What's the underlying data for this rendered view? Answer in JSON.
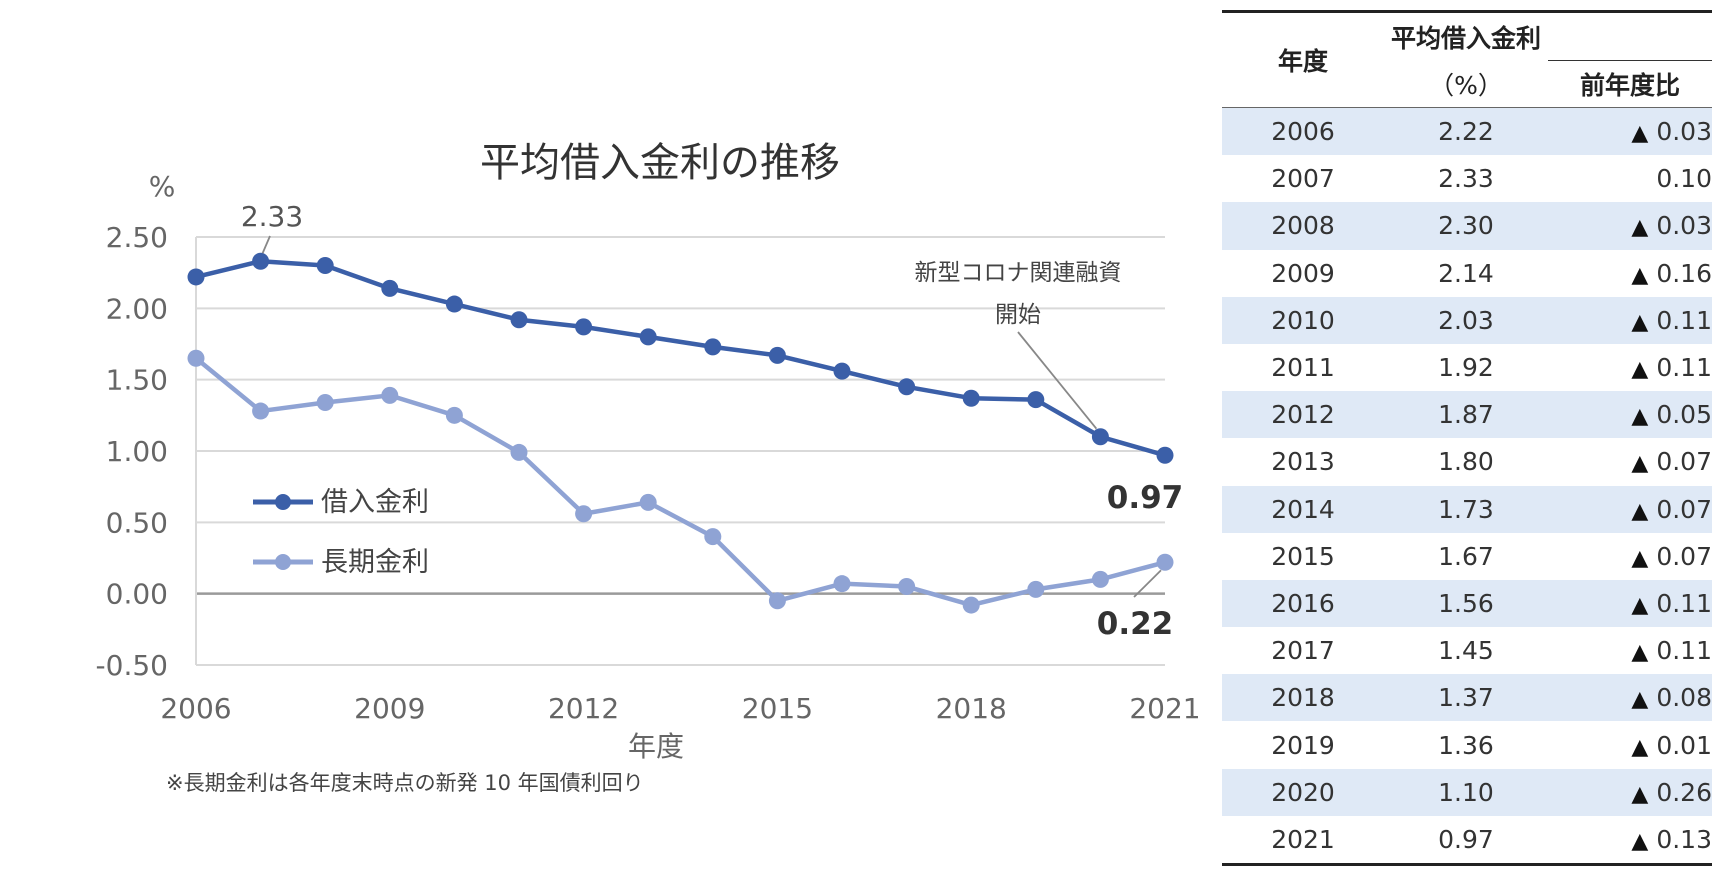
{
  "chart_data": {
    "type": "line",
    "title": "平均借入金利の推移",
    "ylabel": "%",
    "xlabel": "年度",
    "x": [
      2006,
      2007,
      2008,
      2009,
      2010,
      2011,
      2012,
      2013,
      2014,
      2015,
      2016,
      2017,
      2018,
      2019,
      2020,
      2021
    ],
    "xticks": [
      "2006",
      "2009",
      "2012",
      "2015",
      "2018",
      "2021"
    ],
    "yticks": [
      "2.50",
      "2.00",
      "1.50",
      "1.00",
      "0.50",
      "0.00",
      "-0.50"
    ],
    "ylim": [
      -0.5,
      2.5
    ],
    "grid": true,
    "legend_placement": "left-middle",
    "series": [
      {
        "name": "借入金利",
        "color": "#3b5fa8",
        "values": [
          2.22,
          2.33,
          2.3,
          2.14,
          2.03,
          1.92,
          1.87,
          1.8,
          1.73,
          1.67,
          1.56,
          1.45,
          1.37,
          1.36,
          1.1,
          0.97
        ]
      },
      {
        "name": "長期金利",
        "color": "#8fa3d4",
        "values": [
          1.65,
          1.28,
          1.34,
          1.39,
          1.25,
          0.99,
          0.56,
          0.64,
          0.4,
          -0.05,
          0.07,
          0.05,
          -0.08,
          0.03,
          0.1,
          0.22
        ]
      }
    ],
    "annotations": {
      "peak_label": "2.33",
      "end_label_primary": "0.97",
      "end_label_secondary": "0.22",
      "covid_line1": "新型コロナ関連融資",
      "covid_line2": "開始"
    },
    "footnote": "※長期金利は各年度末時点の新発 10 年国債利回り"
  },
  "table": {
    "header_year": "年度",
    "header_avg": "平均借入金利",
    "header_unit": "（%）",
    "header_yoy": "前年度比",
    "triangle": "▲",
    "rows": [
      {
        "year": "2006",
        "rate": "2.22",
        "yoy": "0.03",
        "neg": true
      },
      {
        "year": "2007",
        "rate": "2.33",
        "yoy": "0.10",
        "neg": false
      },
      {
        "year": "2008",
        "rate": "2.30",
        "yoy": "0.03",
        "neg": true
      },
      {
        "year": "2009",
        "rate": "2.14",
        "yoy": "0.16",
        "neg": true
      },
      {
        "year": "2010",
        "rate": "2.03",
        "yoy": "0.11",
        "neg": true
      },
      {
        "year": "2011",
        "rate": "1.92",
        "yoy": "0.11",
        "neg": true
      },
      {
        "year": "2012",
        "rate": "1.87",
        "yoy": "0.05",
        "neg": true
      },
      {
        "year": "2013",
        "rate": "1.80",
        "yoy": "0.07",
        "neg": true
      },
      {
        "year": "2014",
        "rate": "1.73",
        "yoy": "0.07",
        "neg": true
      },
      {
        "year": "2015",
        "rate": "1.67",
        "yoy": "0.07",
        "neg": true
      },
      {
        "year": "2016",
        "rate": "1.56",
        "yoy": "0.11",
        "neg": true
      },
      {
        "year": "2017",
        "rate": "1.45",
        "yoy": "0.11",
        "neg": true
      },
      {
        "year": "2018",
        "rate": "1.37",
        "yoy": "0.08",
        "neg": true
      },
      {
        "year": "2019",
        "rate": "1.36",
        "yoy": "0.01",
        "neg": true
      },
      {
        "year": "2020",
        "rate": "1.10",
        "yoy": "0.26",
        "neg": true
      },
      {
        "year": "2021",
        "rate": "0.97",
        "yoy": "0.13",
        "neg": true
      }
    ]
  }
}
